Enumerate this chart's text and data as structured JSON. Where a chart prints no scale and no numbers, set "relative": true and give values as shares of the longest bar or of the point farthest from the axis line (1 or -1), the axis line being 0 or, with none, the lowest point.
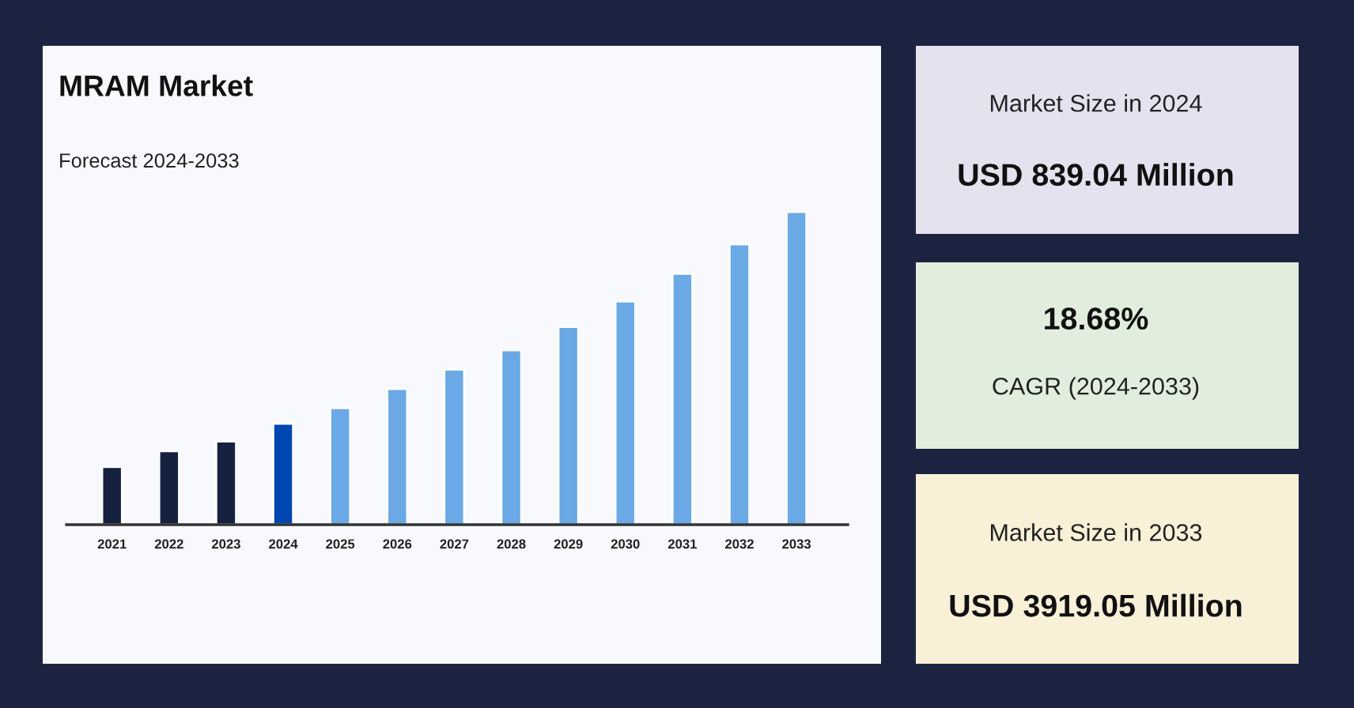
{
  "chart_data": [
    {
      "type": "bar",
      "title": "MRAM Market",
      "subtitle": "Forecast 2024-2033",
      "relative": true,
      "categories": [
        "2021",
        "2022",
        "2023",
        "2024",
        "2025",
        "2026",
        "2027",
        "2028",
        "2029",
        "2030",
        "2031",
        "2032",
        "2033"
      ],
      "values": [
        0.185,
        0.235,
        0.266,
        0.323,
        0.373,
        0.434,
        0.496,
        0.558,
        0.632,
        0.714,
        0.802,
        0.896,
        1.0
      ],
      "colors": [
        "#15213f",
        "#15213f",
        "#15213f",
        "#0046b1",
        "#6aa9e5",
        "#6aa9e5",
        "#6aa9e5",
        "#6aa9e5",
        "#6aa9e5",
        "#6aa9e5",
        "#6aa9e5",
        "#6aa9e5",
        "#6aa9e5"
      ]
    },
    {
      "type": "other",
      "title": "USD 839.04 Million",
      "subtitle": "Market Size in 2024"
    },
    {
      "type": "other",
      "title": "18.68%",
      "subtitle": "CAGR (2024-2033)"
    },
    {
      "type": "other",
      "title": "USD 3919.05 Million",
      "subtitle": "Market Size in 2033"
    }
  ]
}
